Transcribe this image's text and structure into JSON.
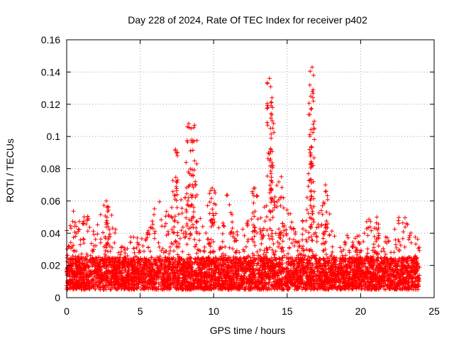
{
  "chart_data": {
    "type": "scatter",
    "title": "Day 228 of 2024, Rate Of TEC Index for receiver p402",
    "xlabel": "GPS time / hours",
    "ylabel": "ROTI / TECUs",
    "xlim": [
      0,
      25
    ],
    "ylim": [
      0,
      0.16
    ],
    "xticks": [
      0,
      5,
      10,
      15,
      20,
      25
    ],
    "xtick_labels": [
      "0",
      "5",
      "10",
      "15",
      "20",
      "25"
    ],
    "yticks": [
      0,
      0.02,
      0.04,
      0.06,
      0.08,
      0.1,
      0.12,
      0.14,
      0.16
    ],
    "ytick_labels": [
      "0",
      "0.02",
      "0.04",
      "0.06",
      "0.08",
      "0.1",
      "0.12",
      "0.14",
      "0.16"
    ],
    "grid": true,
    "marker": "plus",
    "color": "#ff0000",
    "x_range_of_data": [
      0,
      24
    ],
    "baseline_band": [
      0.005,
      0.025
    ],
    "peaks": [
      {
        "x": 8.3,
        "y": 0.108
      },
      {
        "x": 8.7,
        "y": 0.107
      },
      {
        "x": 7.4,
        "y": 0.092
      },
      {
        "x": 13.8,
        "y": 0.136
      },
      {
        "x": 14.0,
        "y": 0.118
      },
      {
        "x": 16.7,
        "y": 0.143
      },
      {
        "x": 16.6,
        "y": 0.125
      },
      {
        "x": 2.7,
        "y": 0.06
      },
      {
        "x": 9.9,
        "y": 0.068
      },
      {
        "x": 12.8,
        "y": 0.068
      },
      {
        "x": 14.6,
        "y": 0.075
      },
      {
        "x": 17.6,
        "y": 0.07
      },
      {
        "x": 21.1,
        "y": 0.05
      }
    ]
  }
}
